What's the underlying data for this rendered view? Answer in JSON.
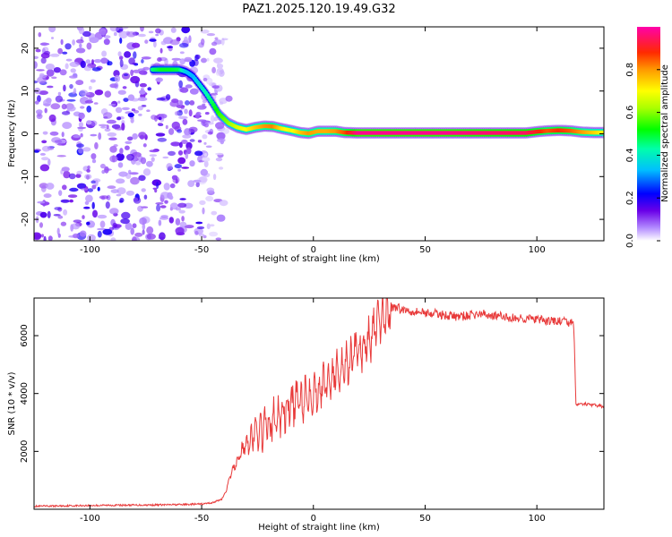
{
  "figure_title": "PAZ1.2025.120.19.49.G32",
  "chart_data": [
    {
      "type": "heatmap",
      "title": "PAZ1.2025.120.19.49.G32",
      "xlabel": "Height of straight line (km)",
      "ylabel": "Frequency (Hz)",
      "xlim": [
        -125,
        130
      ],
      "ylim": [
        -25,
        25
      ],
      "xticks": [
        -100,
        -50,
        0,
        50,
        100
      ],
      "yticks": [
        -20,
        -10,
        0,
        10,
        20
      ],
      "ridge": {
        "x": [
          -72,
          -68,
          -64,
          -60,
          -57,
          -54,
          -51,
          -48,
          -45,
          -42,
          -38,
          -34,
          -30,
          -26,
          -22,
          -18,
          -14,
          -10,
          -6,
          -2,
          2,
          6,
          10,
          14,
          20,
          40,
          60,
          80,
          95,
          100,
          105,
          110,
          115,
          120,
          125,
          130
        ],
        "y": [
          15,
          15,
          15,
          15,
          14.5,
          13.5,
          11.5,
          9.5,
          7,
          4.5,
          2.5,
          1.5,
          1,
          1.5,
          1.8,
          1.7,
          1.2,
          0.8,
          0.3,
          0.1,
          0.6,
          0.6,
          0.6,
          0.3,
          0.2,
          0.2,
          0.2,
          0.2,
          0.2,
          0.5,
          0.7,
          0.8,
          0.7,
          0.4,
          0.3,
          0.3
        ],
        "amplitude": [
          0.45,
          0.5,
          0.5,
          0.48,
          0.35,
          0.32,
          0.38,
          0.42,
          0.48,
          0.55,
          0.6,
          0.66,
          0.7,
          0.75,
          0.8,
          0.82,
          0.72,
          0.68,
          0.75,
          0.8,
          0.78,
          0.78,
          0.8,
          0.85,
          0.98,
          0.98,
          0.98,
          0.96,
          0.95,
          0.9,
          0.85,
          0.88,
          0.85,
          0.8,
          0.75,
          0.7
        ]
      },
      "noise_region_km": [
        -125,
        -40
      ]
    },
    {
      "type": "colorbar",
      "label": "Normalized spectral amplitude",
      "range": [
        0.0,
        1.0
      ],
      "ticks": [
        "0.0",
        "0.2",
        "0.4",
        "0.6",
        "0.8"
      ]
    },
    {
      "type": "line",
      "xlabel": "Height of straight line (km)",
      "ylabel": "SNR (10 * v/v)",
      "xlim": [
        -125,
        130
      ],
      "ylim": [
        0,
        7300
      ],
      "xticks": [
        -100,
        -50,
        0,
        50,
        100
      ],
      "yticks": [
        2000,
        4000,
        6000
      ],
      "series": [
        {
          "name": "SNR",
          "color": "#e83a3a",
          "x": [
            -125,
            -110,
            -90,
            -70,
            -60,
            -50,
            -45,
            -41,
            -39,
            -37,
            -34,
            -30,
            -26,
            -22,
            -18,
            -14,
            -10,
            -6,
            -2,
            2,
            6,
            10,
            14,
            18,
            22,
            26,
            30,
            34,
            36,
            40,
            45,
            50,
            55,
            60,
            65,
            70,
            75,
            80,
            85,
            90,
            95,
            100,
            105,
            110,
            115,
            116.5,
            117.5,
            120,
            125,
            130
          ],
          "y": [
            100,
            120,
            140,
            150,
            160,
            180,
            230,
            350,
            650,
            1200,
            1700,
            2300,
            2600,
            2800,
            3000,
            3300,
            3600,
            3800,
            4000,
            4150,
            4400,
            4700,
            5000,
            5300,
            5600,
            6000,
            6500,
            6900,
            7000,
            6900,
            6850,
            6800,
            6750,
            6700,
            6650,
            6700,
            6750,
            6700,
            6650,
            6600,
            6600,
            6550,
            6500,
            6500,
            6450,
            6400,
            3600,
            3650,
            3600,
            3550
          ]
        }
      ]
    }
  ]
}
